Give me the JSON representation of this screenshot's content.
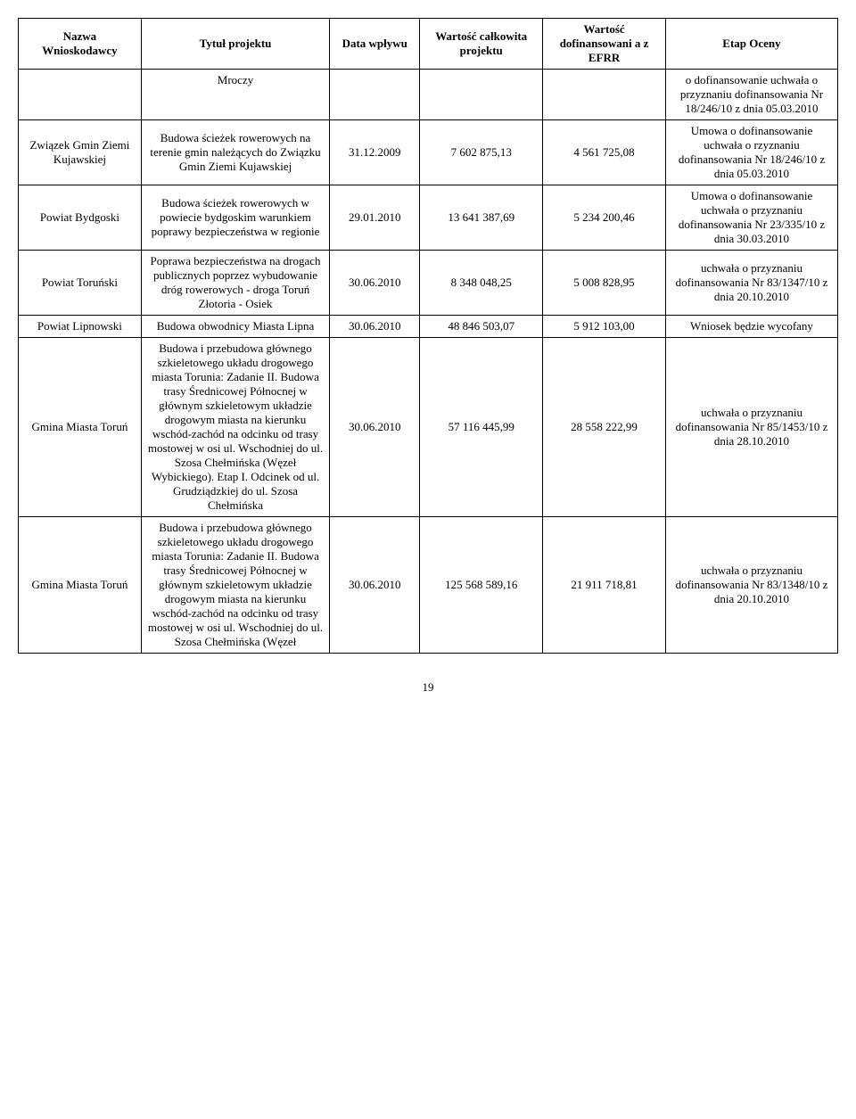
{
  "headers": {
    "nazwa": "Nazwa Wnioskodawcy",
    "tytul": "Tytuł projektu",
    "data": "Data wpływu",
    "wart_cal": "Wartość całkowita projektu",
    "wart_dof": "Wartość dofinansowani a z EFRR",
    "etap": "Etap Oceny"
  },
  "rows": [
    {
      "nazwa": "",
      "tytul": "Mroczy",
      "data": "",
      "wart_cal": "",
      "wart_dof": "",
      "etap": "o dofinansowanie uchwała o przyznaniu dofinansowania Nr 18/246/10 z dnia 05.03.2010"
    },
    {
      "nazwa": "Związek Gmin Ziemi Kujawskiej",
      "tytul": "Budowa ścieżek rowerowych na terenie gmin należących do Związku Gmin Ziemi Kujawskiej",
      "data": "31.12.2009",
      "wart_cal": "7 602 875,13",
      "wart_dof": "4 561 725,08",
      "etap": "Umowa o dofinansowanie uchwała o rzyznaniu dofinansowania Nr 18/246/10 z dnia 05.03.2010"
    },
    {
      "nazwa": "Powiat Bydgoski",
      "tytul": "Budowa ścieżek rowerowych w powiecie bydgoskim warunkiem poprawy bezpieczeństwa w regionie",
      "data": "29.01.2010",
      "wart_cal": "13 641 387,69",
      "wart_dof": "5 234 200,46",
      "etap": "Umowa o dofinansowanie uchwała o przyznaniu dofinansowania Nr 23/335/10 z dnia 30.03.2010"
    },
    {
      "nazwa": "Powiat Toruński",
      "tytul": "Poprawa bezpieczeństwa na drogach publicznych poprzez wybudowanie dróg rowerowych - droga Toruń Złotoria - Osiek",
      "data": "30.06.2010",
      "wart_cal": "8 348 048,25",
      "wart_dof": "5 008 828,95",
      "etap": "uchwała o przyznaniu dofinansowania Nr 83/1347/10 z dnia 20.10.2010"
    },
    {
      "nazwa": "Powiat Lipnowski",
      "tytul": "Budowa obwodnicy Miasta Lipna",
      "data": "30.06.2010",
      "wart_cal": "48 846 503,07",
      "wart_dof": "5 912 103,00",
      "etap": "Wniosek będzie wycofany"
    },
    {
      "nazwa": "Gmina Miasta Toruń",
      "tytul": "Budowa i przebudowa głównego szkieletowego układu drogowego miasta Torunia: Zadanie II. Budowa trasy Średnicowej Północnej w głównym szkieletowym układzie drogowym miasta na kierunku wschód-zachód na odcinku od trasy mostowej w osi ul. Wschodniej do ul. Szosa Chełmińska (Węzeł Wybickiego). Etap I. Odcinek od ul. Grudziądzkiej do ul. Szosa Chełmińska",
      "data": "30.06.2010",
      "wart_cal": "57 116 445,99",
      "wart_dof": "28 558 222,99",
      "etap": "uchwała o przyznaniu dofinansowania Nr 85/1453/10 z dnia 28.10.2010"
    },
    {
      "nazwa": "Gmina Miasta Toruń",
      "tytul": "Budowa i przebudowa głównego szkieletowego układu drogowego miasta Torunia: Zadanie II. Budowa trasy Średnicowej Północnej w głównym szkieletowym układzie drogowym miasta na kierunku wschód-zachód na odcinku od trasy mostowej w osi ul. Wschodniej do ul. Szosa Chełmińska (Węzeł",
      "data": "30.06.2010",
      "wart_cal": "125 568 589,16",
      "wart_dof": "21 911 718,81",
      "etap": "uchwała o przyznaniu dofinansowania Nr 83/1348/10 z dnia 20.10.2010"
    }
  ],
  "page_number": "19"
}
